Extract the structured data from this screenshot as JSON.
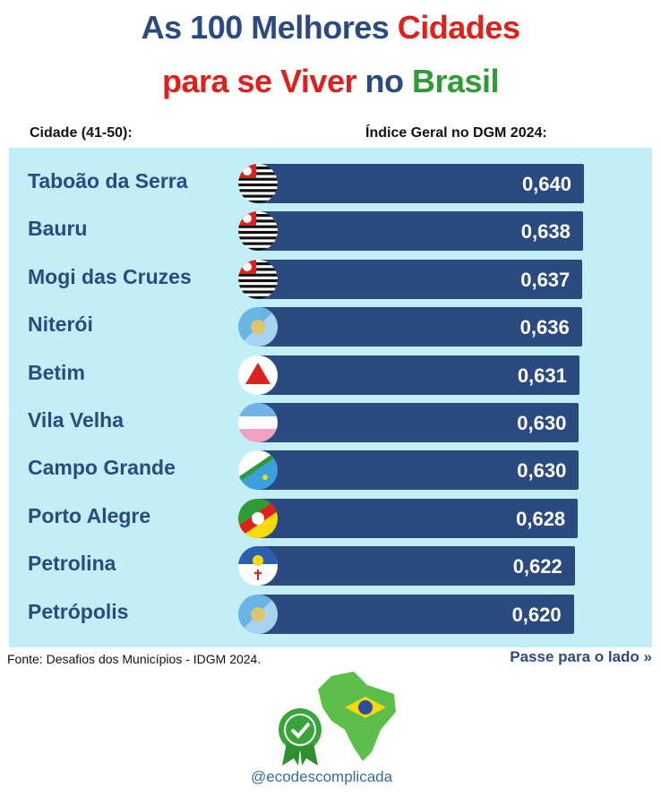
{
  "title": {
    "line1_a": "As 100 Melhores ",
    "line1_b": "Cidades",
    "line2_a": "para se Viver",
    "line2_b": " no ",
    "line2_c": "Brasil"
  },
  "headers": {
    "city": "Cidade (41-50):",
    "index": "Índice Geral no DGM 2024:"
  },
  "footer": {
    "source": "Fonte: Desafios dos Municípios - IDGM 2024.",
    "swipe": "Passe para o lado »",
    "handle": "@ecodescomplicada"
  },
  "colors": {
    "navy": "#2b4a80",
    "red": "#e0201c",
    "green": "#2f9b35",
    "panel": "#c2eef8"
  },
  "chart_data": {
    "type": "bar",
    "orientation": "horizontal",
    "title": "As 100 Melhores Cidades para se Viver no Brasil",
    "xlabel": "Índice Geral no DGM 2024",
    "ylabel": "Cidade (41-50)",
    "xlim": [
      0,
      0.64
    ],
    "categories": [
      "Taboão da Serra",
      "Bauru",
      "Mogi das Cruzes",
      "Niterói",
      "Betim",
      "Vila Velha",
      "Campo Grande",
      "Porto Alegre",
      "Petrolina",
      "Petrópolis"
    ],
    "values": [
      0.64,
      0.638,
      0.637,
      0.636,
      0.631,
      0.63,
      0.63,
      0.628,
      0.622,
      0.62
    ],
    "labels": [
      "0,640",
      "0,638",
      "0,637",
      "0,636",
      "0,631",
      "0,630",
      "0,630",
      "0,628",
      "0,622",
      "0,620"
    ],
    "flags": [
      "sp",
      "sp",
      "sp",
      "rj",
      "mg",
      "es",
      "ms",
      "rs",
      "pe",
      "rj"
    ]
  }
}
